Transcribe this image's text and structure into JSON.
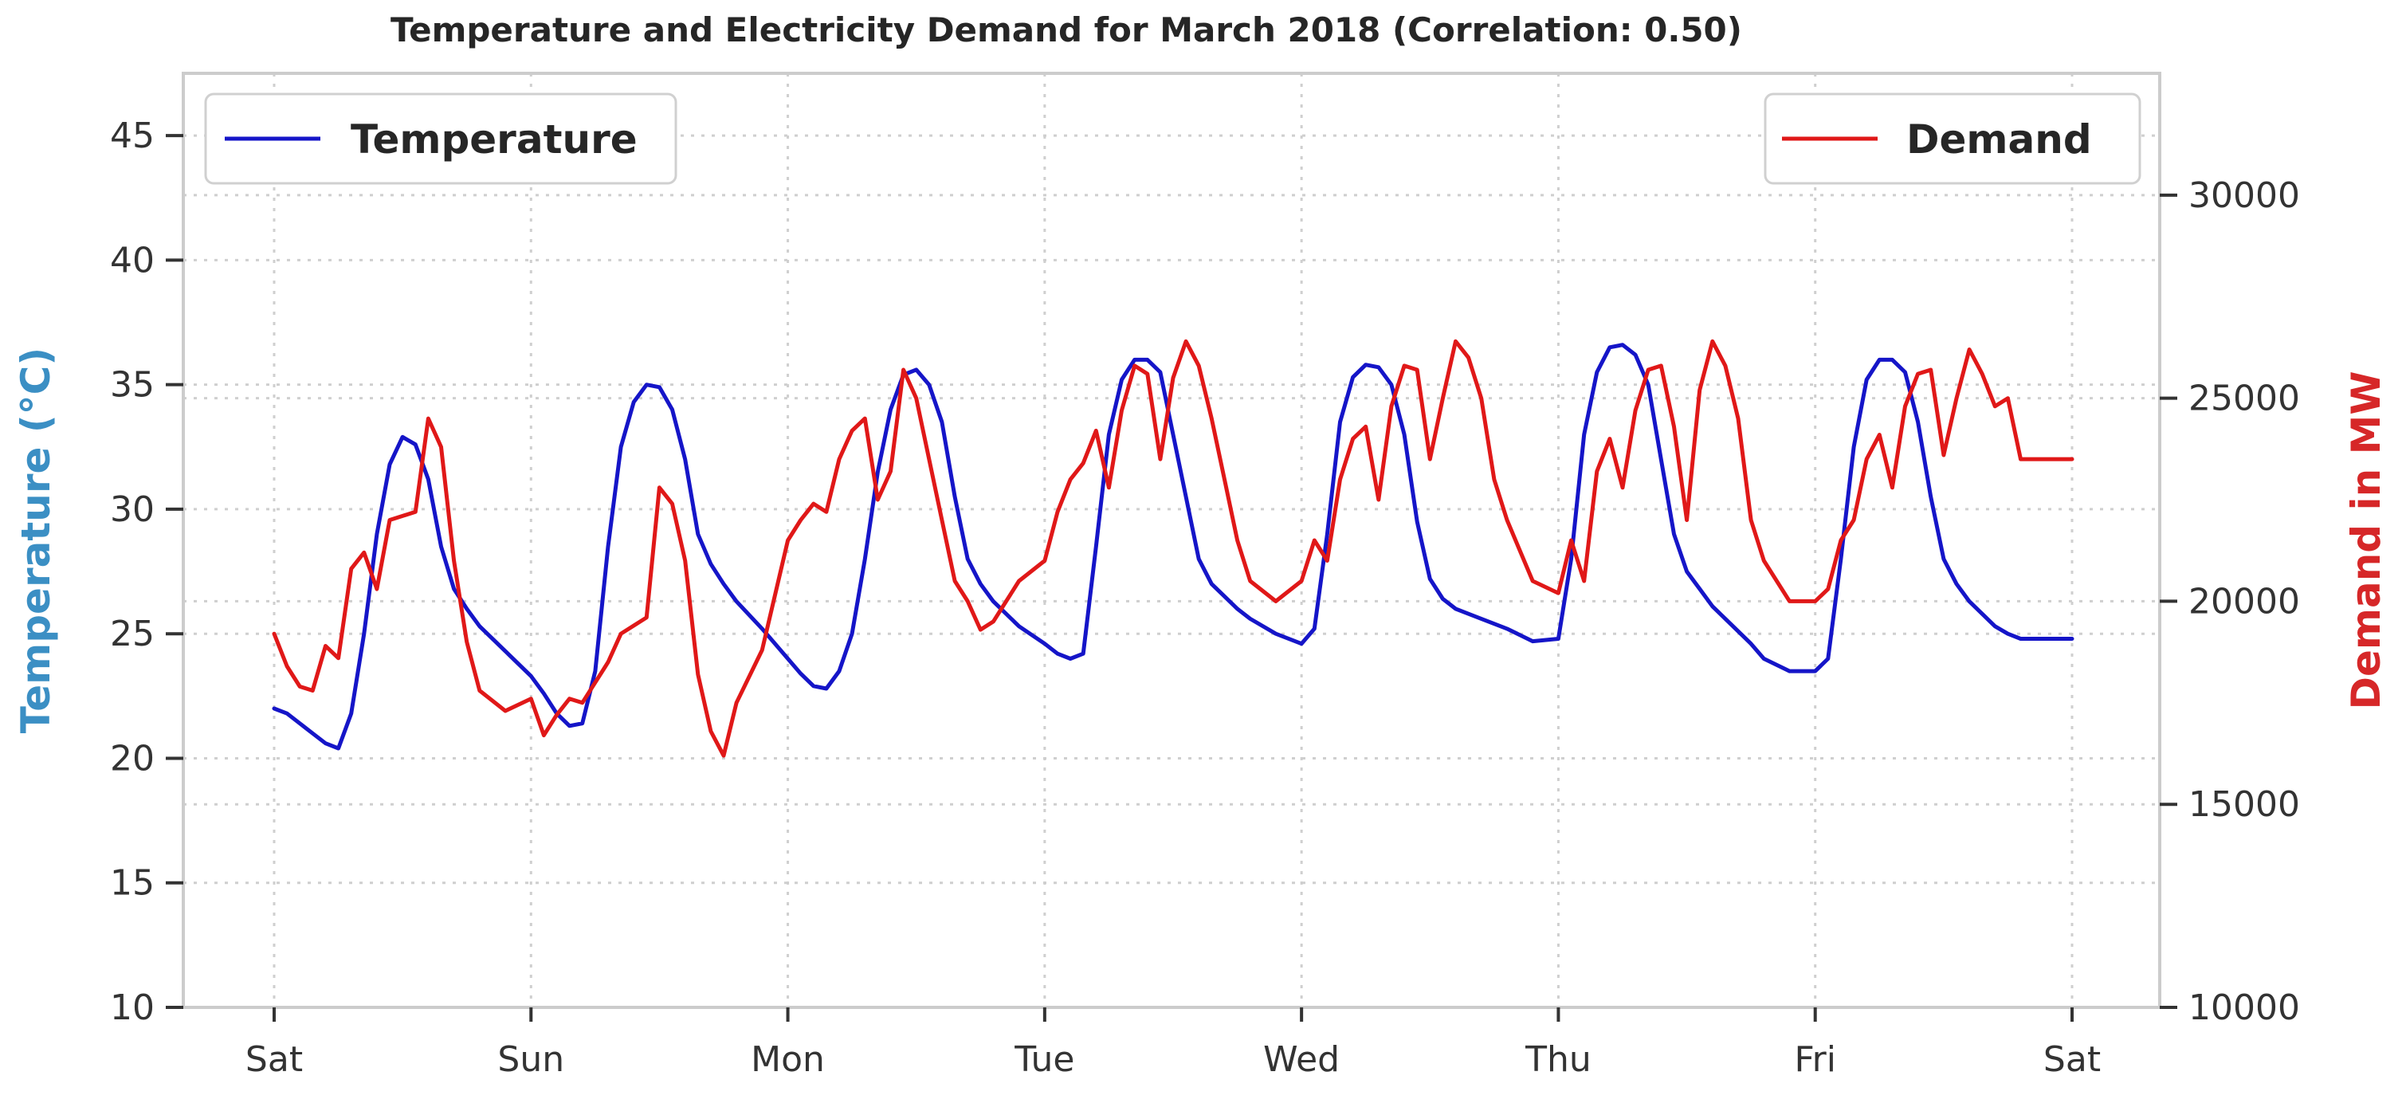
{
  "chart_data": {
    "type": "line",
    "title": "Temperature and Electricity Demand for March 2018 (Correlation: 0.50)",
    "xlabel": "",
    "x_ticks": [
      "Sat",
      "Sun",
      "Mon",
      "Tue",
      "Wed",
      "Thu",
      "Fri",
      "Sat"
    ],
    "x_range_days": [
      0,
      7
    ],
    "y_left": {
      "label": "Temperature (°C)",
      "range": [
        10,
        47.5
      ],
      "ticks": [
        10,
        15,
        20,
        25,
        30,
        35,
        40,
        45
      ],
      "color": "#3b8fc4"
    },
    "y_right": {
      "label": "Demand in MW",
      "range": [
        10000,
        33000
      ],
      "ticks": [
        10000,
        15000,
        20000,
        25000,
        30000
      ],
      "color": "#d62728"
    },
    "grid": true,
    "series": [
      {
        "name": "Temperature",
        "axis": "left",
        "color": "#1515c8",
        "legend_position": "top-left",
        "x": [
          0.0,
          0.05,
          0.1,
          0.15,
          0.2,
          0.25,
          0.3,
          0.35,
          0.4,
          0.45,
          0.5,
          0.55,
          0.6,
          0.65,
          0.7,
          0.75,
          0.8,
          0.9,
          1.0,
          1.05,
          1.1,
          1.15,
          1.2,
          1.25,
          1.3,
          1.35,
          1.4,
          1.45,
          1.5,
          1.55,
          1.6,
          1.65,
          1.7,
          1.75,
          1.8,
          1.9,
          2.0,
          2.05,
          2.1,
          2.15,
          2.2,
          2.25,
          2.3,
          2.35,
          2.4,
          2.45,
          2.5,
          2.55,
          2.6,
          2.65,
          2.7,
          2.75,
          2.8,
          2.9,
          3.0,
          3.05,
          3.1,
          3.15,
          3.2,
          3.25,
          3.3,
          3.35,
          3.4,
          3.45,
          3.5,
          3.55,
          3.6,
          3.65,
          3.7,
          3.75,
          3.8,
          3.9,
          4.0,
          4.05,
          4.1,
          4.15,
          4.2,
          4.25,
          4.3,
          4.35,
          4.4,
          4.45,
          4.5,
          4.55,
          4.6,
          4.65,
          4.7,
          4.75,
          4.8,
          4.9,
          5.0,
          5.05,
          5.1,
          5.15,
          5.2,
          5.25,
          5.3,
          5.35,
          5.4,
          5.45,
          5.5,
          5.55,
          5.6,
          5.65,
          5.7,
          5.75,
          5.8,
          5.9,
          6.0,
          6.05,
          6.1,
          6.15,
          6.2,
          6.25,
          6.3,
          6.35,
          6.4,
          6.45,
          6.5,
          6.55,
          6.6,
          6.65,
          6.7,
          6.75,
          6.8,
          6.85,
          6.9,
          6.95,
          7.0
        ],
        "values": [
          22.0,
          21.8,
          21.4,
          21.0,
          20.6,
          20.4,
          21.8,
          25.0,
          29.0,
          31.8,
          32.9,
          32.6,
          31.2,
          28.5,
          26.8,
          26.0,
          25.3,
          24.3,
          23.3,
          22.6,
          21.8,
          21.3,
          21.4,
          23.5,
          28.5,
          32.5,
          34.3,
          35.0,
          34.9,
          34.0,
          32.0,
          29.0,
          27.8,
          27.0,
          26.3,
          25.2,
          24.0,
          23.4,
          22.9,
          22.8,
          23.5,
          25.0,
          28.0,
          31.5,
          34.0,
          35.4,
          35.6,
          35.0,
          33.5,
          30.5,
          28.0,
          27.0,
          26.3,
          25.3,
          24.6,
          24.2,
          24.0,
          24.2,
          28.5,
          33.0,
          35.2,
          36.0,
          36.0,
          35.5,
          33.0,
          30.5,
          28.0,
          27.0,
          26.5,
          26.0,
          25.6,
          25.0,
          24.6,
          25.2,
          29.0,
          33.5,
          35.3,
          35.8,
          35.7,
          35.0,
          33.0,
          29.5,
          27.2,
          26.4,
          26.0,
          25.8,
          25.6,
          25.4,
          25.2,
          24.7,
          24.8,
          28.0,
          33.0,
          35.5,
          36.5,
          36.6,
          36.2,
          35.0,
          32.0,
          29.0,
          27.5,
          26.8,
          26.1,
          25.6,
          25.1,
          24.6,
          24.0,
          23.5,
          23.5,
          24.0,
          28.0,
          32.5,
          35.2,
          36.0,
          36.0,
          35.5,
          33.5,
          30.5,
          28.0,
          27.0,
          26.3,
          25.8,
          25.3,
          25.0,
          24.8,
          24.8,
          24.8,
          24.8,
          24.8
        ]
      },
      {
        "name": "Demand",
        "axis": "right",
        "color": "#e01818",
        "legend_position": "top-right",
        "x": [
          0.0,
          0.05,
          0.1,
          0.15,
          0.2,
          0.25,
          0.3,
          0.35,
          0.4,
          0.45,
          0.5,
          0.55,
          0.6,
          0.65,
          0.7,
          0.75,
          0.8,
          0.9,
          1.0,
          1.05,
          1.1,
          1.15,
          1.2,
          1.25,
          1.3,
          1.35,
          1.4,
          1.45,
          1.5,
          1.55,
          1.6,
          1.65,
          1.7,
          1.75,
          1.8,
          1.9,
          2.0,
          2.05,
          2.1,
          2.15,
          2.2,
          2.25,
          2.3,
          2.35,
          2.4,
          2.45,
          2.5,
          2.55,
          2.6,
          2.65,
          2.7,
          2.75,
          2.8,
          2.9,
          3.0,
          3.05,
          3.1,
          3.15,
          3.2,
          3.25,
          3.3,
          3.35,
          3.4,
          3.45,
          3.5,
          3.55,
          3.6,
          3.65,
          3.7,
          3.75,
          3.8,
          3.9,
          4.0,
          4.05,
          4.1,
          4.15,
          4.2,
          4.25,
          4.3,
          4.35,
          4.4,
          4.45,
          4.5,
          4.55,
          4.6,
          4.65,
          4.7,
          4.75,
          4.8,
          4.9,
          5.0,
          5.05,
          5.1,
          5.15,
          5.2,
          5.25,
          5.3,
          5.35,
          5.4,
          5.45,
          5.5,
          5.55,
          5.6,
          5.65,
          5.7,
          5.75,
          5.8,
          5.9,
          6.0,
          6.05,
          6.1,
          6.15,
          6.2,
          6.25,
          6.3,
          6.35,
          6.4,
          6.45,
          6.5,
          6.55,
          6.6,
          6.65,
          6.7,
          6.75,
          6.8,
          6.85,
          6.9,
          6.95,
          7.0
        ],
        "values": [
          19200,
          18400,
          17900,
          17800,
          18900,
          18600,
          20800,
          21200,
          20300,
          22000,
          22100,
          22200,
          24500,
          23800,
          21000,
          19000,
          17800,
          17300,
          17600,
          16700,
          17200,
          17600,
          17500,
          18000,
          18500,
          19200,
          19400,
          19600,
          22800,
          22400,
          21000,
          18200,
          16800,
          16200,
          17500,
          18800,
          21500,
          22000,
          22400,
          22200,
          23500,
          24200,
          24500,
          22500,
          23200,
          25700,
          25000,
          23500,
          22000,
          20500,
          20000,
          19300,
          19500,
          20500,
          21000,
          22200,
          23000,
          23400,
          24200,
          22800,
          24700,
          25800,
          25600,
          23500,
          25500,
          26400,
          25800,
          24500,
          23000,
          21500,
          20500,
          20000,
          20500,
          21500,
          21000,
          23000,
          24000,
          24300,
          22500,
          24800,
          25800,
          25700,
          23500,
          25000,
          26400,
          26000,
          25000,
          23000,
          22000,
          20500,
          20200,
          21500,
          20500,
          23200,
          24000,
          22800,
          24700,
          25700,
          25800,
          24300,
          22000,
          25200,
          26400,
          25800,
          24500,
          22000,
          21000,
          20000,
          20000,
          20300,
          21500,
          22000,
          23500,
          24100,
          22800,
          24800,
          25600,
          25700,
          23600,
          25000,
          26200,
          25600,
          24800,
          25000,
          23500,
          23500,
          23500,
          23500,
          23500
        ]
      }
    ]
  }
}
